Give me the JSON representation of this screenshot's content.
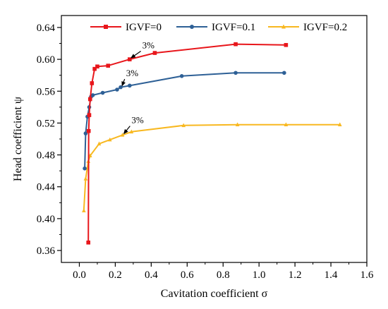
{
  "chart_data": {
    "type": "line",
    "xlabel": "Cavitation coefficient σ",
    "ylabel": "Head coefficient ψ",
    "xlim": [
      -0.1,
      1.6
    ],
    "ylim": [
      0.345,
      0.655
    ],
    "xticks": [
      0.0,
      0.2,
      0.4,
      0.6,
      0.8,
      1.0,
      1.2,
      1.4,
      1.6
    ],
    "xtick_labels": [
      "0.0",
      "0.2",
      "0.4",
      "0.6",
      "0.8",
      "1.0",
      "1.2",
      "1.4",
      "1.6"
    ],
    "yticks": [
      0.36,
      0.4,
      0.44,
      0.48,
      0.52,
      0.56,
      0.6,
      0.64
    ],
    "ytick_labels": [
      "0.36",
      "0.40",
      "0.44",
      "0.48",
      "0.52",
      "0.56",
      "0.60",
      "0.64"
    ],
    "grid": false,
    "legend_position": "top",
    "series": [
      {
        "name": "IGVF=0",
        "color": "#e8161b",
        "marker": "square",
        "x": [
          0.05,
          0.052,
          0.055,
          0.06,
          0.07,
          0.085,
          0.1,
          0.16,
          0.28,
          0.42,
          0.87,
          1.15
        ],
        "y": [
          0.37,
          0.51,
          0.53,
          0.55,
          0.57,
          0.588,
          0.591,
          0.592,
          0.6,
          0.608,
          0.619,
          0.618
        ]
      },
      {
        "name": "IGVF=0.1",
        "color": "#2e6096",
        "marker": "circle",
        "x": [
          0.03,
          0.035,
          0.045,
          0.055,
          0.065,
          0.075,
          0.13,
          0.21,
          0.23,
          0.28,
          0.57,
          0.87,
          1.14
        ],
        "y": [
          0.463,
          0.507,
          0.528,
          0.54,
          0.553,
          0.555,
          0.558,
          0.562,
          0.565,
          0.567,
          0.579,
          0.583,
          0.583
        ]
      },
      {
        "name": "IGVF=0.2",
        "color": "#f8b820",
        "marker": "triangle",
        "x": [
          0.025,
          0.035,
          0.05,
          0.06,
          0.11,
          0.17,
          0.24,
          0.29,
          0.58,
          0.88,
          1.15,
          1.45
        ],
        "y": [
          0.41,
          0.45,
          0.472,
          0.479,
          0.494,
          0.499,
          0.505,
          0.509,
          0.517,
          0.518,
          0.518,
          0.518
        ]
      }
    ],
    "annotations": [
      {
        "text": "3%",
        "arrow_to": [
          0.28,
          0.6
        ],
        "from": [
          0.35,
          0.612
        ]
      },
      {
        "text": "3%",
        "arrow_to": [
          0.23,
          0.565
        ],
        "from": [
          0.26,
          0.577
        ]
      },
      {
        "text": "3%",
        "arrow_to": [
          0.24,
          0.505
        ],
        "from": [
          0.29,
          0.518
        ]
      }
    ]
  }
}
